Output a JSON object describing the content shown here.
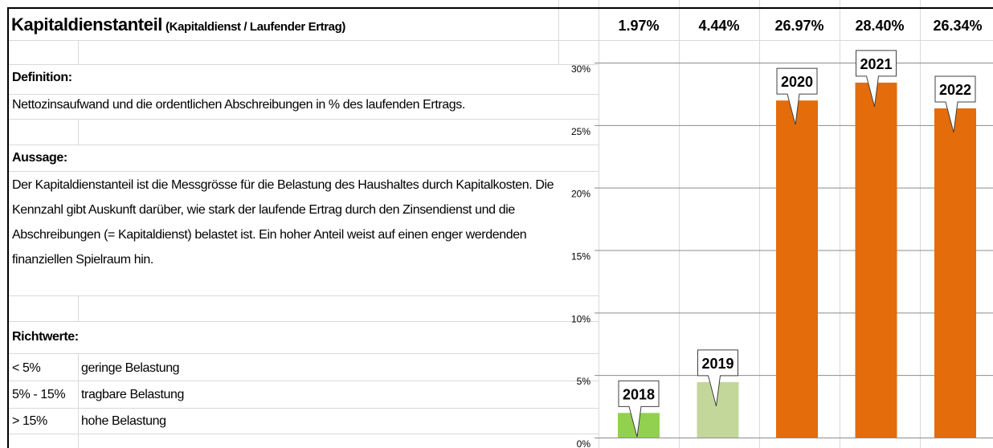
{
  "header": {
    "title": "Kapitaldienstanteil",
    "subtitle": "(Kapitaldienst / Laufender Ertrag)"
  },
  "definition": {
    "heading": "Definition:",
    "text": "Nettozinsaufwand und die ordentlichen Abschreibungen in % des laufenden Ertrags."
  },
  "statement": {
    "heading": "Aussage:",
    "text": "Der Kapitaldienstanteil ist die Messgrösse für die Belastung des Haushaltes durch Kapitalkosten. Die Kennzahl gibt Auskunft darüber, wie stark der laufende Ertrag durch den Zinsendienst und die Abschreibungen (= Kapitaldienst) belastet ist. Ein hoher Anteil weist auf einen enger werdenden finanziellen Spielraum hin."
  },
  "guidelines": {
    "heading": "Richtwerte:",
    "rows": [
      [
        "< 5%",
        "geringe Belastung"
      ],
      [
        "5% - 15%",
        "tragbare Belastung"
      ],
      [
        "> 15%",
        "hohe Belastung"
      ]
    ]
  },
  "chart_data": {
    "type": "bar",
    "categories": [
      "2018",
      "2019",
      "2020",
      "2021",
      "2022"
    ],
    "values": [
      1.97,
      4.44,
      26.97,
      28.4,
      26.34
    ],
    "value_labels": [
      "1.97%",
      "4.44%",
      "26.97%",
      "28.40%",
      "26.34%"
    ],
    "colors": [
      "#92d050",
      "#c4d79b",
      "#e46c0a",
      "#e46c0a",
      "#e46c0a"
    ],
    "ylim": [
      0,
      30
    ],
    "yticks": [
      {
        "value": 0,
        "label": "0%"
      },
      {
        "value": 5,
        "label": "5%"
      },
      {
        "value": 10,
        "label": "10%"
      },
      {
        "value": 15,
        "label": "15%"
      },
      {
        "value": 20,
        "label": "20%"
      },
      {
        "value": 25,
        "label": "25%"
      },
      {
        "value": 30,
        "label": "30%"
      }
    ],
    "grid": true
  }
}
